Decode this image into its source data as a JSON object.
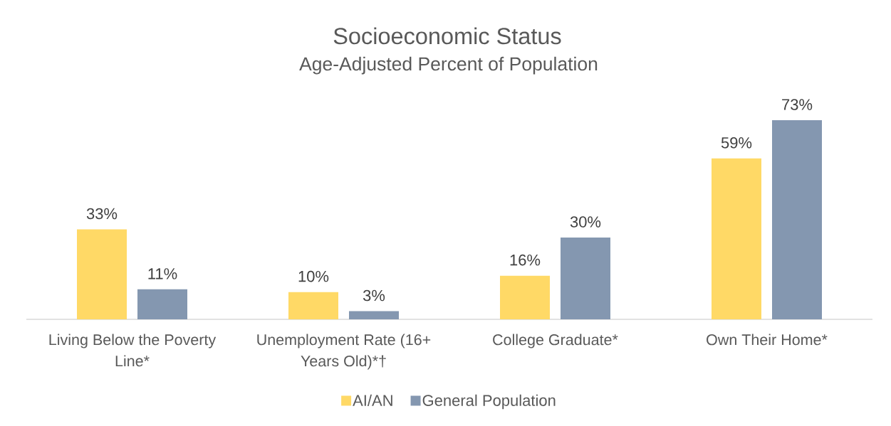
{
  "chart_data": {
    "type": "bar",
    "title": "Socioeconomic Status",
    "subtitle": "Age-Adjusted Percent of Population",
    "categories": [
      "Living Below the Poverty Line*",
      "Unemployment Rate (16+ Years Old)*†",
      "College Graduate*",
      "Own Their Home*"
    ],
    "series": [
      {
        "name": "AI/AN",
        "color": "#ffd966",
        "values": [
          33,
          10,
          16,
          59
        ],
        "value_labels": [
          "33%",
          "10%",
          "16%",
          "59%"
        ]
      },
      {
        "name": "General Population",
        "color": "#8497b0",
        "values": [
          11,
          3,
          30,
          73
        ],
        "value_labels": [
          "11%",
          "3%",
          "30%",
          "73%"
        ]
      }
    ],
    "legend": "bottom"
  }
}
